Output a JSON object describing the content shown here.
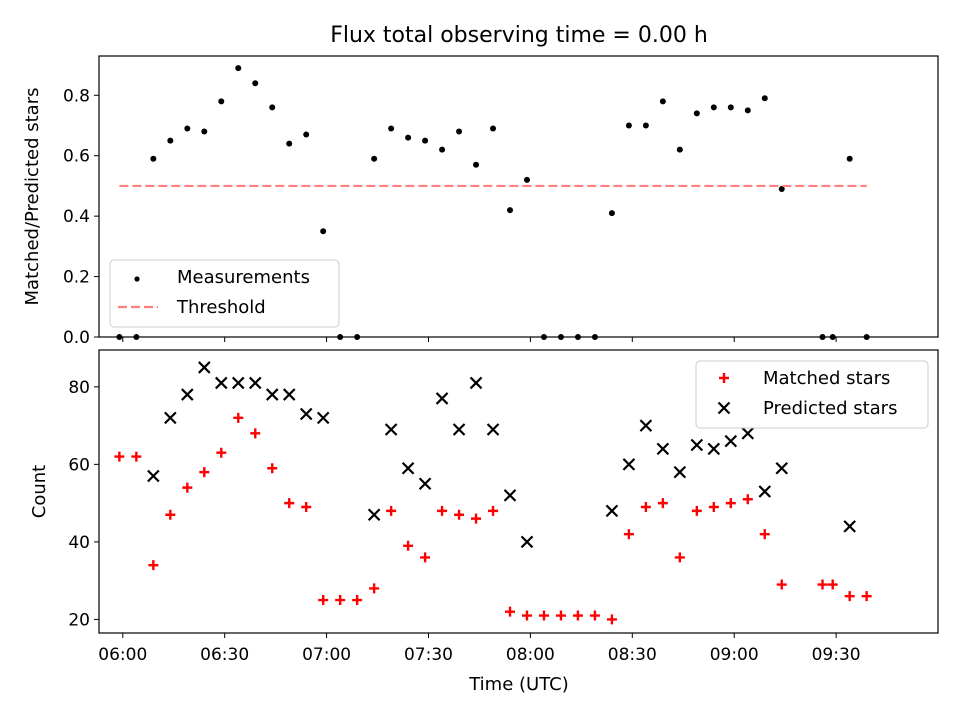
{
  "figure": {
    "title": "Flux total observing time = 0.00 h",
    "xlabel": "Time (UTC)"
  },
  "chart_data": [
    {
      "type": "scatter",
      "ylabel": "Matched/Predicted stars",
      "xlim": [
        "05:53",
        "10:00"
      ],
      "ylim": [
        0.0,
        0.93
      ],
      "yticks": [
        0.0,
        0.2,
        0.4,
        0.6,
        0.8
      ],
      "ytick_labels": [
        "0.0",
        "0.2",
        "0.4",
        "0.6",
        "0.8"
      ],
      "legend": {
        "placement": "lower-left",
        "entries": [
          "Measurements",
          "Threshold"
        ]
      },
      "series": [
        {
          "name": "Measurements",
          "marker": "dot",
          "color": "#000000",
          "points": [
            [
              "05:59",
              0.0
            ],
            [
              "06:04",
              0.0
            ],
            [
              "06:09",
              0.59
            ],
            [
              "06:14",
              0.65
            ],
            [
              "06:19",
              0.69
            ],
            [
              "06:24",
              0.68
            ],
            [
              "06:29",
              0.78
            ],
            [
              "06:34",
              0.89
            ],
            [
              "06:39",
              0.84
            ],
            [
              "06:44",
              0.76
            ],
            [
              "06:49",
              0.64
            ],
            [
              "06:54",
              0.67
            ],
            [
              "06:59",
              0.35
            ],
            [
              "07:04",
              0.0
            ],
            [
              "07:09",
              0.0
            ],
            [
              "07:14",
              0.59
            ],
            [
              "07:19",
              0.69
            ],
            [
              "07:24",
              0.66
            ],
            [
              "07:29",
              0.65
            ],
            [
              "07:34",
              0.62
            ],
            [
              "07:39",
              0.68
            ],
            [
              "07:44",
              0.57
            ],
            [
              "07:49",
              0.69
            ],
            [
              "07:54",
              0.42
            ],
            [
              "07:59",
              0.52
            ],
            [
              "08:04",
              0.0
            ],
            [
              "08:09",
              0.0
            ],
            [
              "08:14",
              0.0
            ],
            [
              "08:19",
              0.0
            ],
            [
              "08:24",
              0.41
            ],
            [
              "08:29",
              0.7
            ],
            [
              "08:34",
              0.7
            ],
            [
              "08:39",
              0.78
            ],
            [
              "08:44",
              0.62
            ],
            [
              "08:49",
              0.74
            ],
            [
              "08:54",
              0.76
            ],
            [
              "08:59",
              0.76
            ],
            [
              "09:04",
              0.75
            ],
            [
              "09:09",
              0.79
            ],
            [
              "09:14",
              0.49
            ],
            [
              "09:26",
              0.0
            ],
            [
              "09:29",
              0.0
            ],
            [
              "09:34",
              0.59
            ],
            [
              "09:39",
              0.0
            ]
          ]
        },
        {
          "name": "Threshold",
          "style": "dashed",
          "color": "#ff7f7f",
          "points": [
            [
              "05:59",
              0.5
            ],
            [
              "09:39",
              0.5
            ]
          ]
        }
      ]
    },
    {
      "type": "scatter",
      "ylabel": "Count",
      "xlim": [
        "05:53",
        "10:00"
      ],
      "ylim": [
        16.5,
        89.5
      ],
      "yticks": [
        20,
        40,
        60,
        80
      ],
      "ytick_labels": [
        "20",
        "40",
        "60",
        "80"
      ],
      "xticks": [
        "06:00",
        "06:30",
        "07:00",
        "07:30",
        "08:00",
        "08:30",
        "09:00",
        "09:30"
      ],
      "legend": {
        "placement": "top-right",
        "entries": [
          "Matched stars",
          "Predicted stars"
        ]
      },
      "series": [
        {
          "name": "Matched stars",
          "marker": "plus",
          "color": "#ff0000",
          "points": [
            [
              "05:59",
              62
            ],
            [
              "06:04",
              62
            ],
            [
              "06:09",
              34
            ],
            [
              "06:14",
              47
            ],
            [
              "06:19",
              54
            ],
            [
              "06:24",
              58
            ],
            [
              "06:29",
              63
            ],
            [
              "06:34",
              72
            ],
            [
              "06:39",
              68
            ],
            [
              "06:44",
              59
            ],
            [
              "06:49",
              50
            ],
            [
              "06:54",
              49
            ],
            [
              "06:59",
              25
            ],
            [
              "07:04",
              25
            ],
            [
              "07:09",
              25
            ],
            [
              "07:14",
              28
            ],
            [
              "07:19",
              48
            ],
            [
              "07:24",
              39
            ],
            [
              "07:29",
              36
            ],
            [
              "07:34",
              48
            ],
            [
              "07:39",
              47
            ],
            [
              "07:44",
              46
            ],
            [
              "07:49",
              48
            ],
            [
              "07:54",
              22
            ],
            [
              "07:59",
              21
            ],
            [
              "08:04",
              21
            ],
            [
              "08:09",
              21
            ],
            [
              "08:14",
              21
            ],
            [
              "08:19",
              21
            ],
            [
              "08:24",
              20
            ],
            [
              "08:29",
              42
            ],
            [
              "08:34",
              49
            ],
            [
              "08:39",
              50
            ],
            [
              "08:44",
              36
            ],
            [
              "08:49",
              48
            ],
            [
              "08:54",
              49
            ],
            [
              "08:59",
              50
            ],
            [
              "09:04",
              51
            ],
            [
              "09:09",
              42
            ],
            [
              "09:14",
              29
            ],
            [
              "09:26",
              29
            ],
            [
              "09:29",
              29
            ],
            [
              "09:34",
              26
            ],
            [
              "09:39",
              26
            ]
          ]
        },
        {
          "name": "Predicted stars",
          "marker": "x",
          "color": "#000000",
          "points": [
            [
              "06:09",
              57
            ],
            [
              "06:14",
              72
            ],
            [
              "06:19",
              78
            ],
            [
              "06:24",
              85
            ],
            [
              "06:29",
              81
            ],
            [
              "06:34",
              81
            ],
            [
              "06:39",
              81
            ],
            [
              "06:44",
              78
            ],
            [
              "06:49",
              78
            ],
            [
              "06:54",
              73
            ],
            [
              "06:59",
              72
            ],
            [
              "07:14",
              47
            ],
            [
              "07:19",
              69
            ],
            [
              "07:24",
              59
            ],
            [
              "07:29",
              55
            ],
            [
              "07:34",
              77
            ],
            [
              "07:39",
              69
            ],
            [
              "07:44",
              81
            ],
            [
              "07:49",
              69
            ],
            [
              "07:54",
              52
            ],
            [
              "07:59",
              40
            ],
            [
              "08:24",
              48
            ],
            [
              "08:29",
              60
            ],
            [
              "08:34",
              70
            ],
            [
              "08:39",
              64
            ],
            [
              "08:44",
              58
            ],
            [
              "08:49",
              65
            ],
            [
              "08:54",
              64
            ],
            [
              "08:59",
              66
            ],
            [
              "09:04",
              68
            ],
            [
              "09:09",
              53
            ],
            [
              "09:14",
              59
            ],
            [
              "09:34",
              44
            ]
          ]
        }
      ]
    }
  ]
}
